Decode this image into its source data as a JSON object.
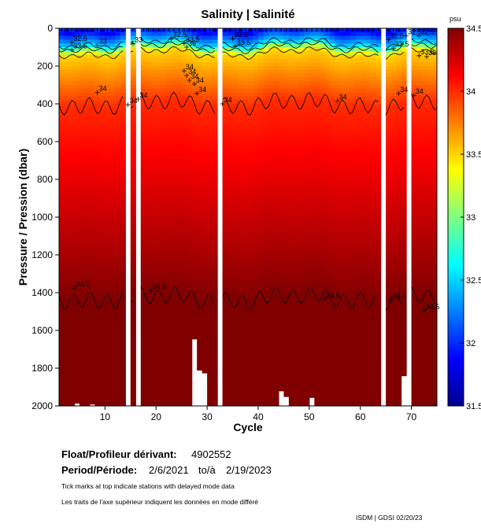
{
  "chart_data": {
    "type": "heatmap",
    "title": "Salinity | Salinité",
    "xlabel": "Cycle",
    "ylabel": "Pressure / Pression (dbar)",
    "xlim": [
      1,
      75
    ],
    "ylim": [
      0,
      2000
    ],
    "y_inverted": true,
    "x_ticks": [
      10,
      20,
      30,
      40,
      50,
      60,
      70
    ],
    "y_ticks": [
      0,
      200,
      400,
      600,
      800,
      1000,
      1200,
      1400,
      1600,
      1800,
      2000
    ],
    "colorbar": {
      "unit": "psu",
      "range": [
        31.5,
        34.5
      ],
      "ticks": [
        "34.5",
        "34",
        "33.5",
        "33",
        "32.5",
        "32",
        "31.5"
      ],
      "tick_values": [
        34.5,
        34.0,
        33.5,
        33.0,
        32.5,
        32.0,
        31.5
      ]
    },
    "missing_cycles": [
      14,
      16,
      32,
      64,
      69
    ],
    "contours": [
      {
        "level": "32.5",
        "approx_depth_dbar": 80
      },
      {
        "level": "33",
        "approx_depth_dbar": 100
      },
      {
        "level": "33.5",
        "approx_depth_dbar": 130
      },
      {
        "level": "34",
        "approx_depth_dbar": 400
      },
      {
        "level": "34.5",
        "approx_depth_dbar": 1430
      }
    ],
    "contour_labels": [
      {
        "text": "32.5",
        "cycle": 3.5,
        "p": 75
      },
      {
        "text": "33.5",
        "cycle": 3.5,
        "p": 115
      },
      {
        "text": "33",
        "cycle": 8.5,
        "p": 90
      },
      {
        "text": "33",
        "cycle": 15.5,
        "p": 82
      },
      {
        "text": "32.5",
        "cycle": 23,
        "p": 55
      },
      {
        "text": "33.5",
        "cycle": 25.5,
        "p": 80
      },
      {
        "text": "33",
        "cycle": 26,
        "p": 100
      },
      {
        "text": "32.5",
        "cycle": 35,
        "p": 55
      },
      {
        "text": "33.5",
        "cycle": 35.5,
        "p": 95
      },
      {
        "text": "32.5",
        "cycle": 65.5,
        "p": 60
      },
      {
        "text": "33.5",
        "cycle": 66.5,
        "p": 105
      },
      {
        "text": "32.5",
        "cycle": 69,
        "p": 40
      },
      {
        "text": "32.5",
        "cycle": 71.5,
        "p": 40
      },
      {
        "text": "33.5",
        "cycle": 71.5,
        "p": 145
      },
      {
        "text": "33",
        "cycle": 73,
        "p": 150
      },
      {
        "text": "34",
        "cycle": 8.5,
        "p": 340
      },
      {
        "text": "34",
        "cycle": 14.5,
        "p": 405
      },
      {
        "text": "34",
        "cycle": 16.5,
        "p": 375
      },
      {
        "text": "34",
        "cycle": 25.5,
        "p": 225
      },
      {
        "text": "34",
        "cycle": 26,
        "p": 250
      },
      {
        "text": "34",
        "cycle": 26.5,
        "p": 275
      },
      {
        "text": "34",
        "cycle": 27.5,
        "p": 295
      },
      {
        "text": "34",
        "cycle": 28,
        "p": 345
      },
      {
        "text": "34",
        "cycle": 33,
        "p": 400
      },
      {
        "text": "34",
        "cycle": 55.5,
        "p": 385
      },
      {
        "text": "34",
        "cycle": 67.5,
        "p": 345
      },
      {
        "text": "34",
        "cycle": 70.5,
        "p": 355
      },
      {
        "text": "34.5",
        "cycle": 4,
        "p": 1375
      },
      {
        "text": "34.5",
        "cycle": 19,
        "p": 1390
      },
      {
        "text": "34.5",
        "cycle": 53,
        "p": 1435
      },
      {
        "text": "34.5",
        "cycle": 66,
        "p": 1440
      },
      {
        "text": "34.5",
        "cycle": 72.5,
        "p": 1495
      }
    ],
    "profile_max_depths": [
      {
        "cycle": 4,
        "max_pressure_dbar": 1985
      },
      {
        "cycle": 7,
        "max_pressure_dbar": 1990
      },
      {
        "cycle": 27,
        "max_pressure_dbar": 1645
      },
      {
        "cycle": 28,
        "max_pressure_dbar": 1810
      },
      {
        "cycle": 29,
        "max_pressure_dbar": 1825
      },
      {
        "cycle": 44,
        "max_pressure_dbar": 1920
      },
      {
        "cycle": 45,
        "max_pressure_dbar": 1950
      },
      {
        "cycle": 50,
        "max_pressure_dbar": 1955
      },
      {
        "cycle": 68,
        "max_pressure_dbar": 1840
      }
    ]
  },
  "info": {
    "float_label": "Float/Profileur dérivant:",
    "float_id": "4902552",
    "period_label": "Period/Période:",
    "period_start": "2/6/2021",
    "period_to": "to/à",
    "period_end": "2/19/2023",
    "note_en": "Tick marks at top indicate stations with delayed mode data",
    "note_fr": "Les traits de l'axe supérieur indiquent les données en mode différé",
    "credit": "ISDM | GDSI  02/20/23"
  }
}
